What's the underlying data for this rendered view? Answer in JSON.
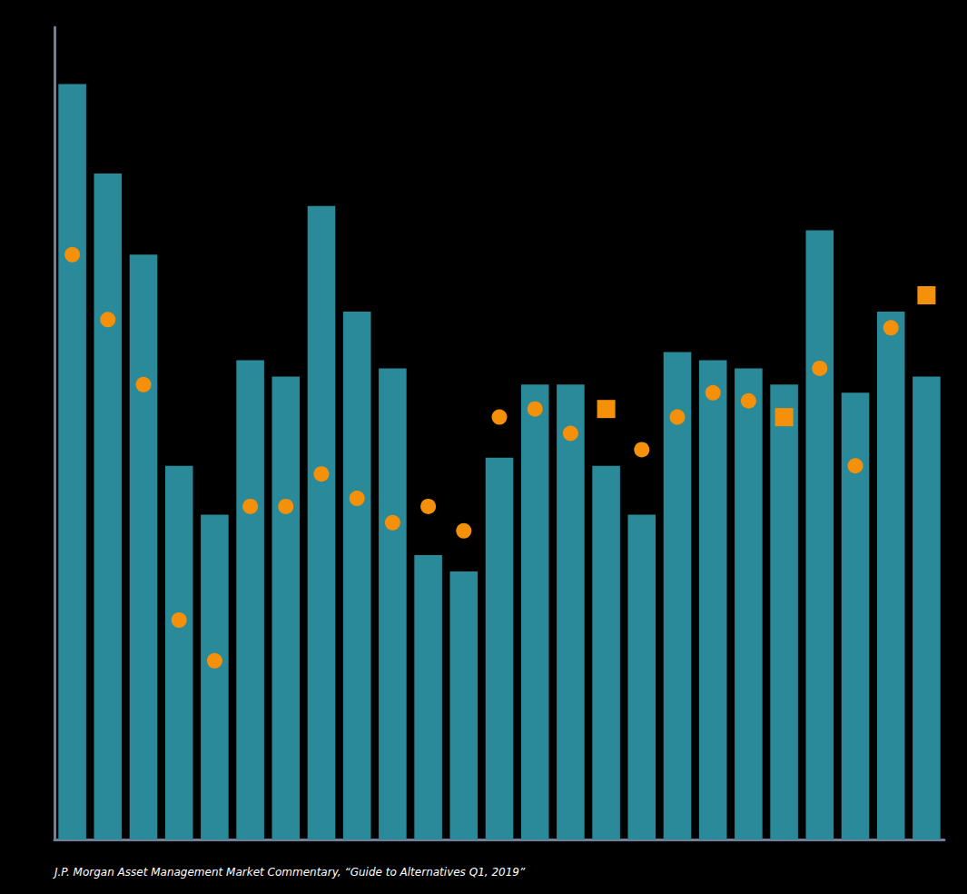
{
  "chart_data": {
    "type": "bar",
    "annotation": "J.P. Morgan Asset Management Market Commentary, “Guide to Alternatives Q1, 2019”",
    "categories": [
      null,
      null,
      null,
      null,
      null,
      null,
      null,
      null,
      null,
      null,
      null,
      null,
      null,
      null,
      null,
      null,
      null,
      null,
      null,
      null,
      null,
      null,
      null,
      null,
      null
    ],
    "series": [
      {
        "type": "bar",
        "color": "#2a8a99",
        "values": [
          93,
          82,
          72,
          46,
          40,
          59,
          57,
          78,
          65,
          58,
          35,
          33,
          47,
          56,
          56,
          46,
          40,
          60,
          59,
          58,
          56,
          75,
          55,
          65,
          57
        ]
      },
      {
        "type": "scatter",
        "marker": "circle",
        "color": "#f5900a",
        "values": [
          72,
          64,
          56,
          27,
          22,
          41,
          41,
          45,
          42,
          39,
          41,
          38,
          52,
          53,
          50,
          null,
          48,
          52,
          55,
          54,
          null,
          58,
          46,
          63,
          null
        ]
      },
      {
        "type": "scatter",
        "marker": "square",
        "color": "#f5900a",
        "values": [
          null,
          null,
          null,
          null,
          null,
          null,
          null,
          null,
          null,
          null,
          null,
          null,
          null,
          null,
          null,
          53,
          null,
          null,
          null,
          null,
          52,
          null,
          null,
          null,
          67
        ]
      }
    ],
    "ylim": [
      0,
      100
    ],
    "tick_labels": false,
    "grid": false
  }
}
